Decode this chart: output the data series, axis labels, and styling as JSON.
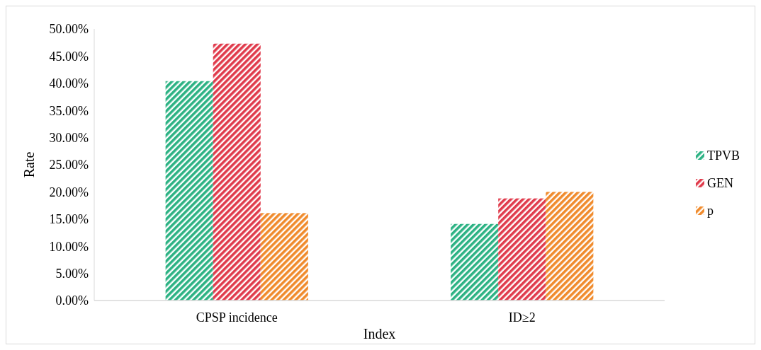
{
  "chart_data": {
    "type": "bar",
    "xlabel": "Index",
    "ylabel": "Rate",
    "categories": [
      "CPSP incidence",
      "ID≥2"
    ],
    "series": [
      {
        "name": "TPVB",
        "color": "#2bb283",
        "values": [
          40.4,
          14.1
        ]
      },
      {
        "name": "GEN",
        "color": "#e03a4b",
        "values": [
          47.3,
          18.8
        ]
      },
      {
        "name": "p",
        "color": "#f08a2b",
        "values": [
          16.1,
          20.0
        ]
      }
    ],
    "ylim": [
      0,
      50
    ],
    "yticks": [
      {
        "value": 0,
        "label": "0.00%"
      },
      {
        "value": 5,
        "label": "5.00%"
      },
      {
        "value": 10,
        "label": "10.00%"
      },
      {
        "value": 15,
        "label": "15.00%"
      },
      {
        "value": 20,
        "label": "20.00%"
      },
      {
        "value": 25,
        "label": "25.00%"
      },
      {
        "value": 30,
        "label": "30.00%"
      },
      {
        "value": 35,
        "label": "35.00%"
      },
      {
        "value": 40,
        "label": "40.00%"
      },
      {
        "value": 45,
        "label": "45.00%"
      },
      {
        "value": 50,
        "label": "50.00%"
      }
    ],
    "grid": false,
    "legend": "right"
  }
}
